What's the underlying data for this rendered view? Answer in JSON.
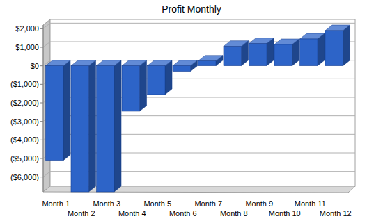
{
  "chart_data": {
    "type": "bar",
    "title": "Profit Monthly",
    "categories": [
      "Month 1",
      "Month 2",
      "Month 3",
      "Month 4",
      "Month 5",
      "Month 6",
      "Month 7",
      "Month 8",
      "Month 9",
      "Month 10",
      "Month 11",
      "Month 12"
    ],
    "values": [
      -5100,
      -6800,
      -6800,
      -2450,
      -1550,
      -300,
      260,
      1050,
      1200,
      1150,
      1450,
      1900
    ],
    "color": "#2d64c8",
    "ylim": [
      -6800,
      2200
    ],
    "yticks": [
      {
        "value": -6000,
        "label": "($6,000)"
      },
      {
        "value": -5000,
        "label": "($5,000)"
      },
      {
        "value": -4000,
        "label": "($4,000)"
      },
      {
        "value": -3000,
        "label": "($3,000)"
      },
      {
        "value": -2000,
        "label": "($2,000)"
      },
      {
        "value": -1000,
        "label": "($1,000)"
      },
      {
        "value": 0,
        "label": "$0"
      },
      {
        "value": 1000,
        "label": "$1,000"
      },
      {
        "value": 2000,
        "label": "$2,000"
      }
    ],
    "grid": true
  }
}
